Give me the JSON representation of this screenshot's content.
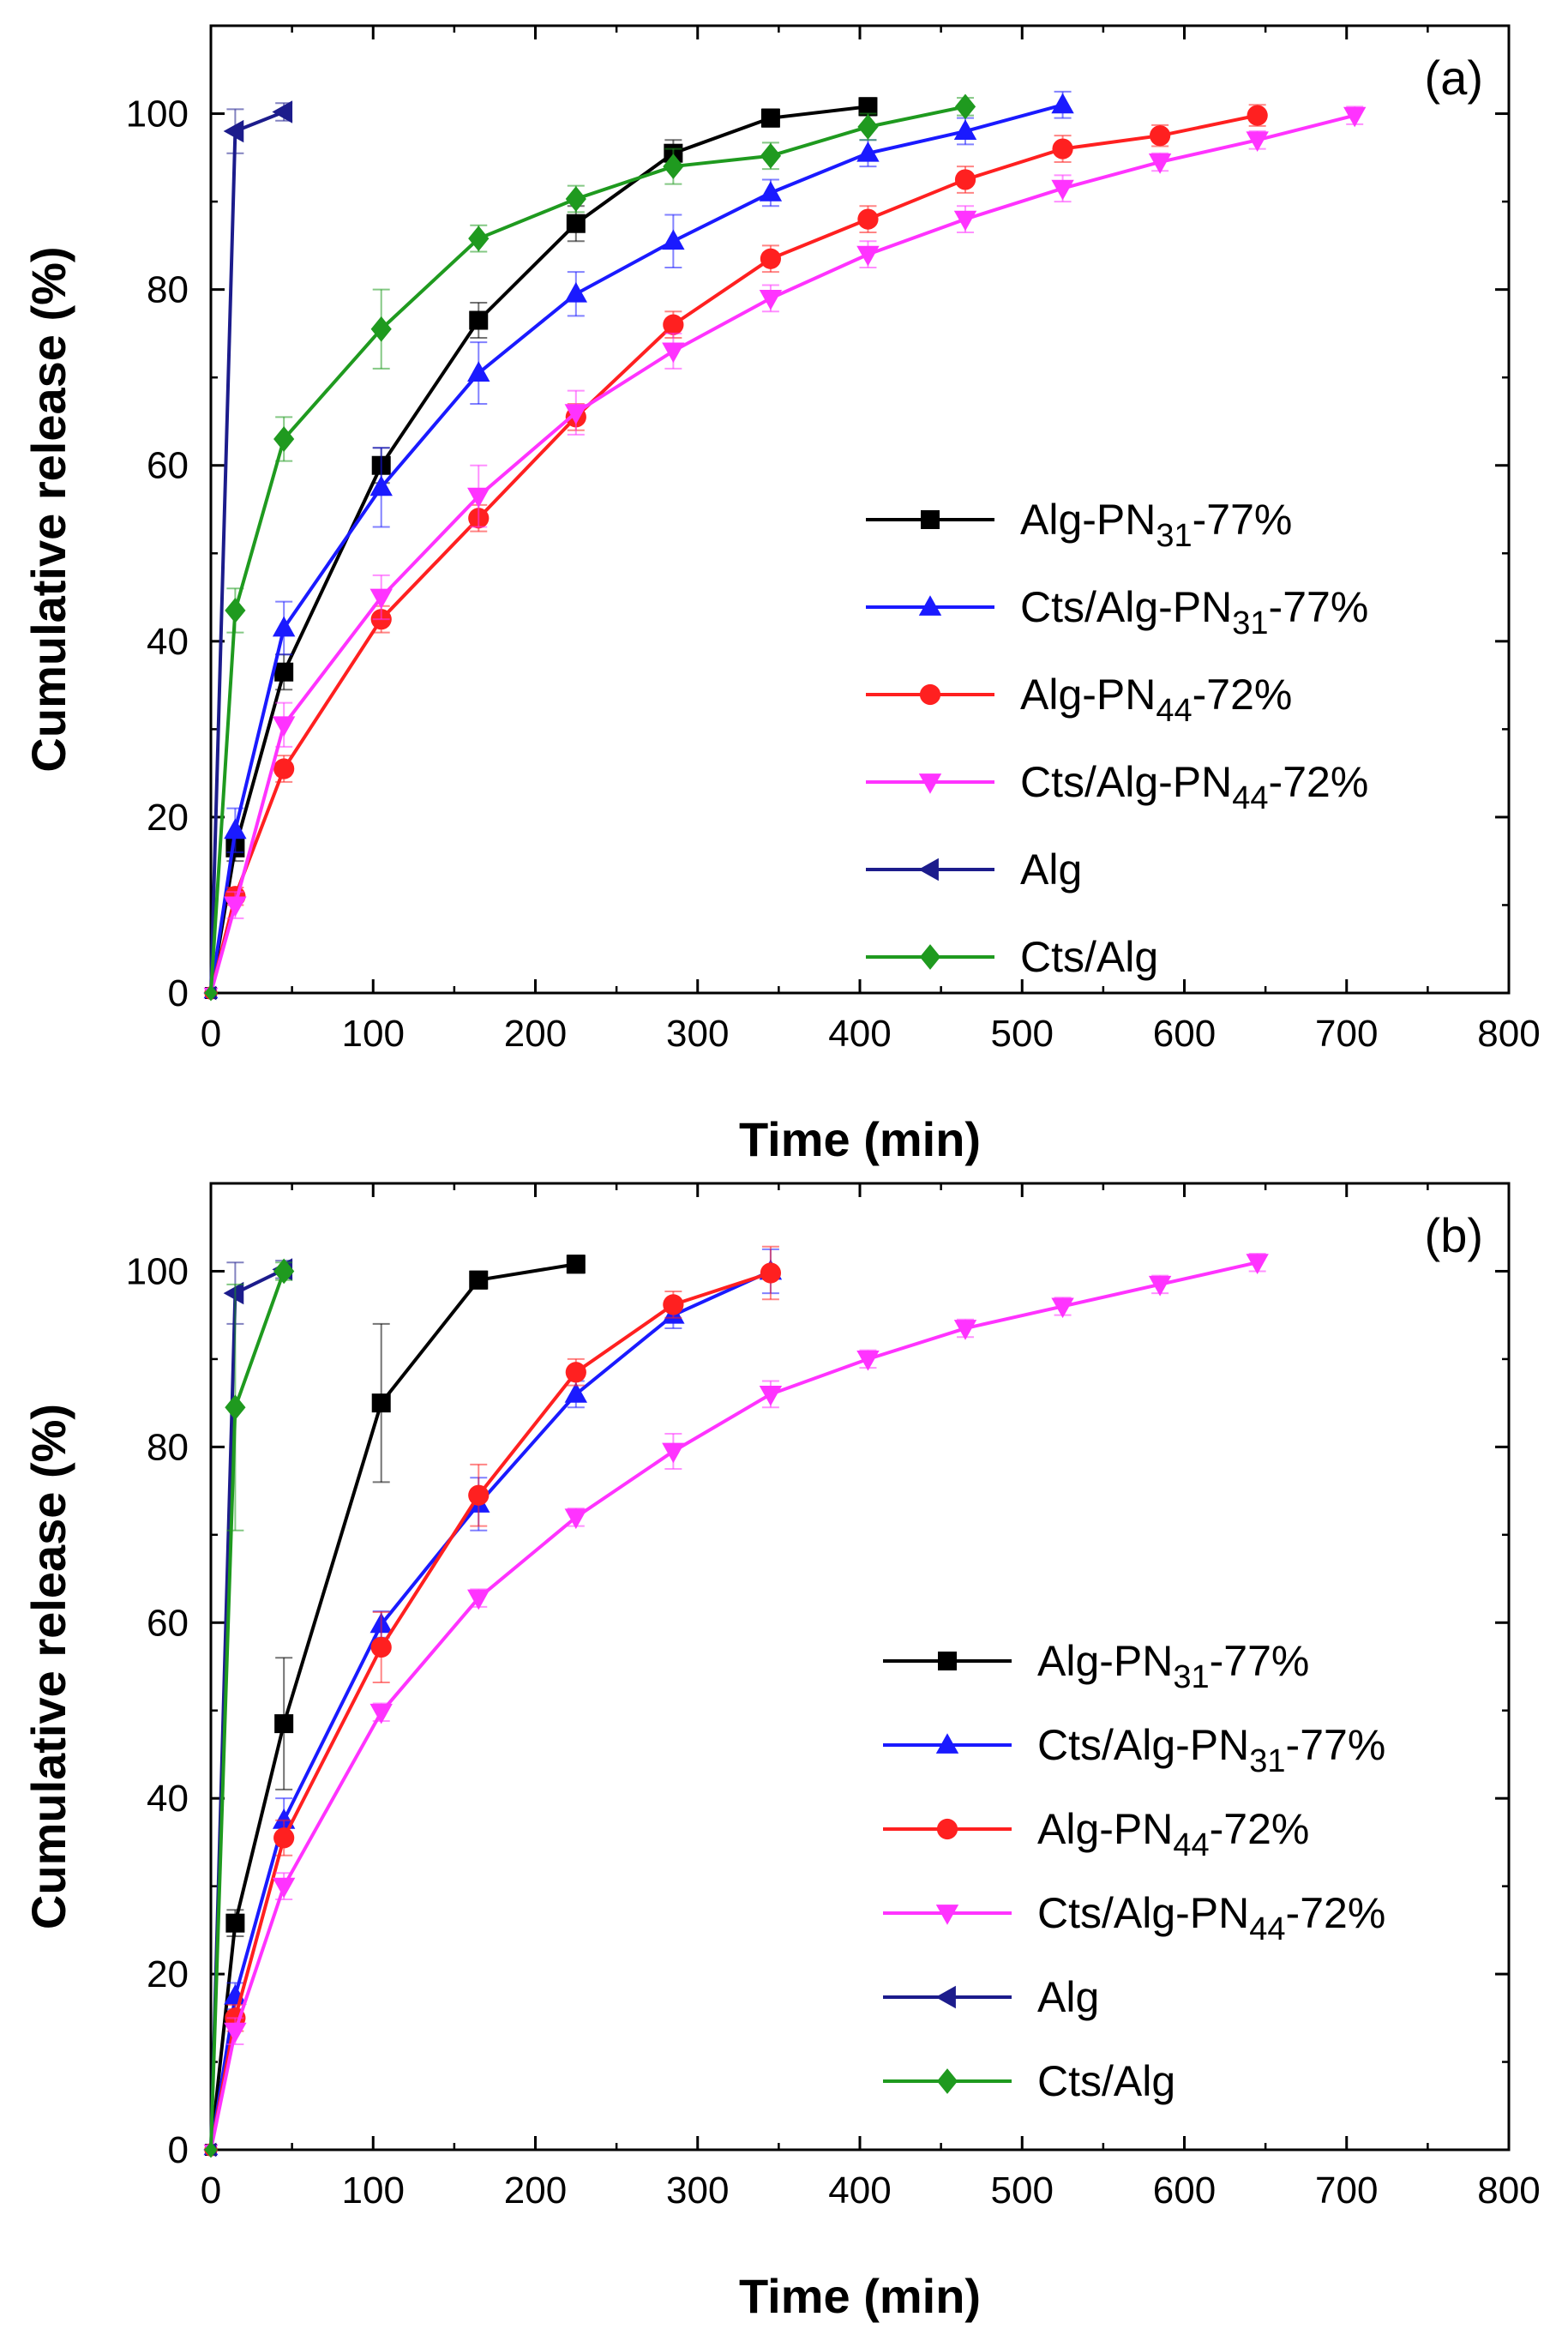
{
  "chart_data": [
    {
      "type": "line",
      "panel_label": "(a)",
      "xlabel": "Time (min)",
      "ylabel": "Cumulative release (%)",
      "xlim": [
        0,
        800
      ],
      "ylim": [
        0,
        110
      ],
      "xticks": [
        0,
        100,
        200,
        300,
        400,
        500,
        600,
        700,
        800
      ],
      "yticks": [
        0,
        20,
        40,
        60,
        80,
        100
      ],
      "grid": false,
      "legend_position": "center-right",
      "series": [
        {
          "name_main": "Alg-PN",
          "name_sub": "31",
          "name_post": "-77%",
          "color": "#000000",
          "marker": "square",
          "x": [
            0,
            15,
            45,
            105,
            165,
            225,
            285,
            345,
            405
          ],
          "y": [
            0,
            16.5,
            36.5,
            60,
            76.5,
            87.5,
            95.5,
            99.5,
            100.8
          ],
          "err": [
            0,
            1.5,
            2,
            2,
            2,
            2,
            1.5,
            1,
            1
          ]
        },
        {
          "name_main": "Cts/Alg-PN",
          "name_sub": "31",
          "name_post": "-77%",
          "color": "#1a1aff",
          "marker": "triangle-up",
          "x": [
            0,
            15,
            45,
            105,
            165,
            225,
            285,
            345,
            405,
            465,
            525
          ],
          "y": [
            0,
            18.5,
            41.5,
            57.5,
            70.5,
            79.5,
            85.5,
            91,
            95.5,
            98,
            101
          ],
          "err": [
            0,
            2.5,
            3,
            4.5,
            3.5,
            2.5,
            3,
            1.5,
            1.5,
            1.5,
            1.5
          ]
        },
        {
          "name_main": "Alg-PN",
          "name_sub": "44",
          "name_post": "-72%",
          "color": "#ff2020",
          "marker": "circle",
          "x": [
            0,
            15,
            45,
            105,
            165,
            225,
            285,
            345,
            405,
            465,
            525,
            585,
            645
          ],
          "y": [
            0,
            11,
            25.5,
            42.5,
            54,
            65.5,
            76,
            83.5,
            88,
            92.5,
            96,
            97.5,
            99.8
          ],
          "err": [
            0,
            1,
            1.5,
            1.5,
            1.5,
            1.5,
            1.5,
            1.5,
            1.5,
            1.5,
            1.5,
            1.2,
            1.2
          ]
        },
        {
          "name_main": "Cts/Alg-PN",
          "name_sub": "44",
          "name_post": "-72%",
          "color": "#ff33ff",
          "marker": "triangle-down",
          "x": [
            0,
            15,
            45,
            105,
            165,
            225,
            285,
            345,
            405,
            465,
            525,
            585,
            645,
            705
          ],
          "y": [
            0,
            10,
            30.5,
            45,
            56.5,
            66,
            73,
            79,
            84,
            88,
            91.5,
            94.5,
            97,
            99.8
          ],
          "err": [
            0,
            1.5,
            2.5,
            2.5,
            3.5,
            2.5,
            2,
            1.5,
            1.5,
            1.5,
            1.5,
            1,
            1,
            1
          ]
        },
        {
          "name_main": "Alg",
          "name_sub": "",
          "name_post": "",
          "color": "#1c1c8c",
          "marker": "triangle-left",
          "x": [
            0,
            15,
            45
          ],
          "y": [
            0,
            98,
            100.2
          ],
          "err": [
            0,
            2.5,
            1
          ]
        },
        {
          "name_main": "Cts/Alg",
          "name_sub": "",
          "name_post": "",
          "color": "#1f9a1f",
          "marker": "diamond",
          "x": [
            0,
            15,
            45,
            105,
            165,
            225,
            285,
            345,
            405,
            465
          ],
          "y": [
            0,
            43.5,
            63,
            75.5,
            85.8,
            90.3,
            94,
            95.2,
            98.5,
            100.8
          ],
          "err": [
            0,
            2.5,
            2.5,
            4.5,
            1.5,
            1.5,
            2,
            1.5,
            1.5,
            1
          ]
        }
      ]
    },
    {
      "type": "line",
      "panel_label": "(b)",
      "xlabel": "Time (min)",
      "ylabel": "Cumulative release (%)",
      "xlim": [
        0,
        800
      ],
      "ylim": [
        0,
        110
      ],
      "xticks": [
        0,
        100,
        200,
        300,
        400,
        500,
        600,
        700,
        800
      ],
      "yticks": [
        0,
        20,
        40,
        60,
        80,
        100
      ],
      "grid": false,
      "legend_position": "center-right",
      "series": [
        {
          "name_main": "Alg-PN",
          "name_sub": "31",
          "name_post": "-77%",
          "color": "#000000",
          "marker": "square",
          "x": [
            0,
            15,
            45,
            105,
            165,
            225
          ],
          "y": [
            0,
            25.8,
            48.5,
            85,
            99,
            100.8
          ],
          "err": [
            0,
            1.5,
            7.5,
            9,
            1,
            1
          ]
        },
        {
          "name_main": "Cts/Alg-PN",
          "name_sub": "31",
          "name_post": "-77%",
          "color": "#1a1aff",
          "marker": "triangle-up",
          "x": [
            0,
            15,
            45,
            105,
            165,
            225,
            285,
            345
          ],
          "y": [
            0,
            17.5,
            37.5,
            59.8,
            73.5,
            86,
            95,
            100
          ],
          "err": [
            0,
            1.5,
            2.5,
            1.5,
            3,
            1.5,
            1.5,
            2.5
          ]
        },
        {
          "name_main": "Alg-PN",
          "name_sub": "44",
          "name_post": "-72%",
          "color": "#ff2020",
          "marker": "circle",
          "x": [
            0,
            15,
            45,
            105,
            165,
            225,
            285,
            345
          ],
          "y": [
            0,
            15,
            35.5,
            57.2,
            74.5,
            88.5,
            96.2,
            99.8
          ],
          "err": [
            0,
            1.5,
            2,
            4,
            3.5,
            1.5,
            1.5,
            3
          ]
        },
        {
          "name_main": "Cts/Alg-PN",
          "name_sub": "44",
          "name_post": "-72%",
          "color": "#ff33ff",
          "marker": "triangle-down",
          "x": [
            0,
            15,
            45,
            105,
            165,
            225,
            285,
            345,
            405,
            465,
            525,
            585,
            645
          ],
          "y": [
            0,
            13.5,
            30,
            49.8,
            62.8,
            72,
            79.5,
            86,
            90,
            93.5,
            96,
            98.5,
            101
          ],
          "err": [
            0,
            1.5,
            1.5,
            1,
            1,
            1,
            2,
            1.5,
            1,
            1,
            1,
            1,
            1
          ]
        },
        {
          "name_main": "Alg",
          "name_sub": "",
          "name_post": "",
          "color": "#1c1c8c",
          "marker": "triangle-left",
          "x": [
            0,
            15,
            45
          ],
          "y": [
            0,
            97.5,
            100.2
          ],
          "err": [
            0,
            3.5,
            1
          ]
        },
        {
          "name_main": "Cts/Alg",
          "name_sub": "",
          "name_post": "",
          "color": "#1f9a1f",
          "marker": "diamond",
          "x": [
            0,
            15,
            45
          ],
          "y": [
            0,
            84.5,
            100
          ],
          "err": [
            0,
            14,
            1
          ]
        }
      ]
    }
  ]
}
